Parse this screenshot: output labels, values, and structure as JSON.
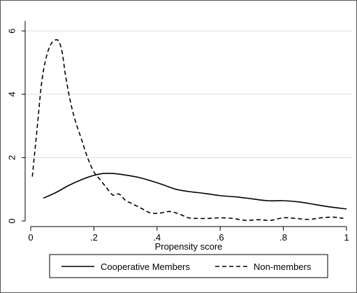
{
  "chart_data": {
    "type": "line",
    "title": "",
    "xlabel": "Propensity score",
    "ylabel": "",
    "xlim": [
      0,
      1
    ],
    "ylim": [
      0,
      6.3
    ],
    "x_ticks": [
      0,
      0.2,
      0.4,
      0.6,
      0.8,
      1
    ],
    "x_tick_labels": [
      "0",
      ".2",
      ".4",
      ".6",
      ".8",
      "1"
    ],
    "y_ticks": [
      0,
      2,
      4,
      6
    ],
    "y_tick_labels": [
      "0",
      "2",
      "4",
      "6"
    ],
    "grid": "horizontal",
    "legend_position": "bottom",
    "series": [
      {
        "name": "Cooperative Members",
        "style": "solid",
        "color": "#000000",
        "x": [
          0.04,
          0.08,
          0.12,
          0.16,
          0.2,
          0.23,
          0.26,
          0.3,
          0.34,
          0.38,
          0.42,
          0.46,
          0.5,
          0.55,
          0.6,
          0.65,
          0.7,
          0.75,
          0.8,
          0.85,
          0.9,
          0.95,
          1.0
        ],
        "y": [
          0.72,
          0.9,
          1.12,
          1.3,
          1.44,
          1.5,
          1.5,
          1.45,
          1.38,
          1.27,
          1.14,
          1.0,
          0.93,
          0.87,
          0.8,
          0.76,
          0.7,
          0.64,
          0.64,
          0.6,
          0.52,
          0.44,
          0.38
        ]
      },
      {
        "name": "Non-members",
        "style": "dashed",
        "color": "#000000",
        "x": [
          0.005,
          0.02,
          0.035,
          0.05,
          0.065,
          0.08,
          0.09,
          0.1,
          0.11,
          0.125,
          0.14,
          0.16,
          0.18,
          0.2,
          0.22,
          0.24,
          0.26,
          0.28,
          0.3,
          0.32,
          0.35,
          0.38,
          0.41,
          0.44,
          0.47,
          0.5,
          0.53,
          0.56,
          0.6,
          0.64,
          0.68,
          0.72,
          0.76,
          0.8,
          0.84,
          0.88,
          0.92,
          0.96,
          0.99
        ],
        "y": [
          1.4,
          2.9,
          4.4,
          5.2,
          5.6,
          5.72,
          5.65,
          5.3,
          4.6,
          3.8,
          3.2,
          2.6,
          2.0,
          1.55,
          1.3,
          1.05,
          0.82,
          0.85,
          0.65,
          0.55,
          0.4,
          0.25,
          0.25,
          0.3,
          0.22,
          0.1,
          0.08,
          0.08,
          0.1,
          0.08,
          0.02,
          0.04,
          0.02,
          0.1,
          0.08,
          0.05,
          0.1,
          0.12,
          0.08
        ]
      }
    ]
  }
}
